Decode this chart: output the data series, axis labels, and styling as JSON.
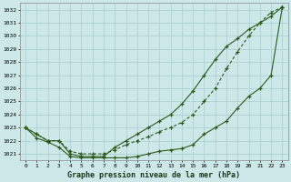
{
  "title": "Graphe pression niveau de la mer (hPa)",
  "bg_color": "#cce8e8",
  "grid_color": "#aacece",
  "line_color": "#2d5a1b",
  "x": [
    0,
    1,
    2,
    3,
    4,
    5,
    6,
    7,
    8,
    9,
    10,
    11,
    12,
    13,
    14,
    15,
    16,
    17,
    18,
    19,
    20,
    21,
    22,
    23
  ],
  "line1": [
    1023.0,
    1022.5,
    1022.0,
    1022.0,
    1021.0,
    1020.8,
    1020.8,
    1020.8,
    1021.5,
    1022.0,
    1022.5,
    1023.0,
    1023.5,
    1024.0,
    1024.8,
    1025.8,
    1027.0,
    1028.2,
    1029.2,
    1029.8,
    1030.5,
    1031.0,
    1031.5,
    1032.2
  ],
  "line2": [
    1023.0,
    1022.5,
    1022.0,
    1022.0,
    1021.2,
    1021.0,
    1021.0,
    1021.0,
    1021.3,
    1021.7,
    1022.0,
    1022.3,
    1022.7,
    1023.0,
    1023.4,
    1024.0,
    1025.0,
    1026.0,
    1027.5,
    1028.8,
    1030.0,
    1031.0,
    1031.8,
    1032.2
  ],
  "line3": [
    1023.0,
    1022.2,
    1021.9,
    1021.5,
    1020.8,
    1020.7,
    1020.7,
    1020.7,
    1020.7,
    1020.7,
    1020.8,
    1021.0,
    1021.2,
    1021.3,
    1021.4,
    1021.7,
    1022.5,
    1023.0,
    1023.5,
    1024.5,
    1025.4,
    1026.0,
    1027.0,
    1032.2
  ],
  "ylim_min": 1020.5,
  "ylim_max": 1032.5,
  "yticks": [
    1021,
    1022,
    1023,
    1024,
    1025,
    1026,
    1027,
    1028,
    1029,
    1030,
    1031,
    1032
  ]
}
